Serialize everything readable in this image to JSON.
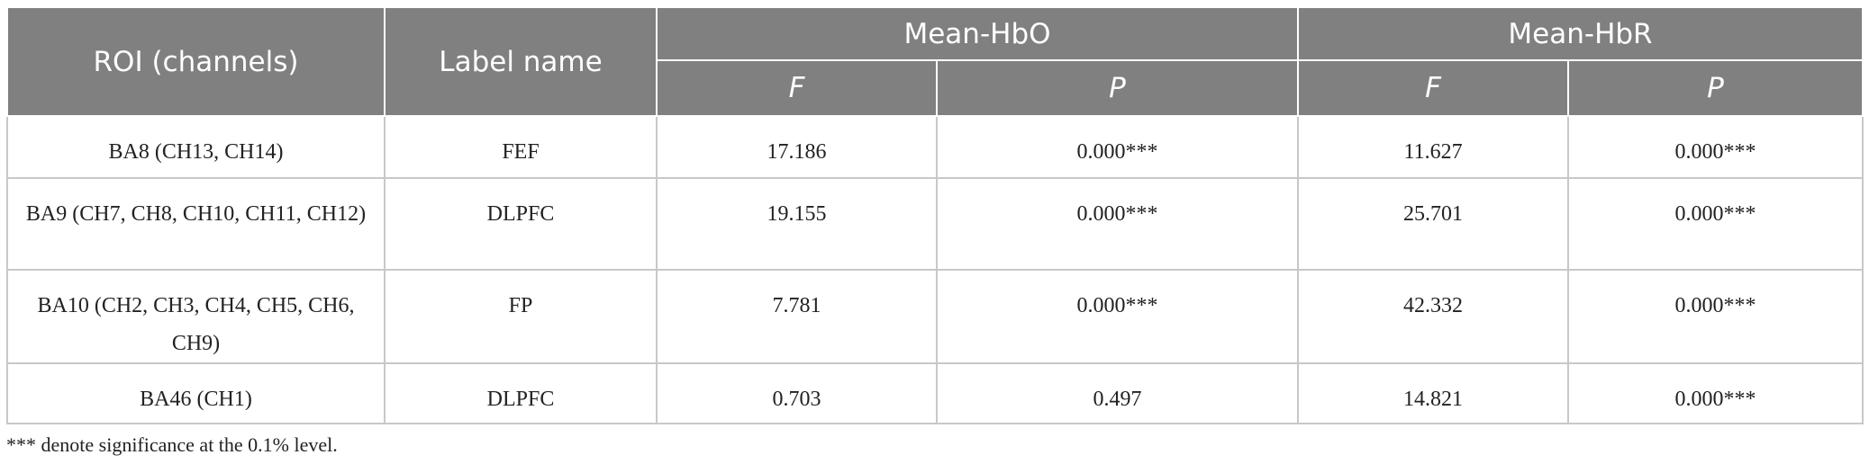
{
  "table": {
    "header": [
      "ROI (channels)",
      "Label name",
      "Mean-HbO",
      "Mean-HbR"
    ],
    "subheader": [
      "F",
      "P",
      "F",
      "P"
    ],
    "rows": [
      [
        "BA8 (CH13, CH14)",
        "FEF",
        "17.186",
        "0.000***",
        "11.627",
        "0.000***"
      ],
      [
        "BA9 (CH7, CH8, CH10, CH11, CH12)",
        "DLPFC",
        "19.155",
        "0.000***",
        "25.701",
        "0.000***"
      ],
      [
        "BA10 (CH2, CH3, CH4, CH5, CH6, CH9)",
        "FP",
        "7.781",
        "0.000***",
        "42.332",
        "0.000***"
      ],
      [
        "BA46 (CH1)",
        "DLPFC",
        "0.703",
        "0.497",
        "14.821",
        "0.000***"
      ]
    ]
  },
  "footnote": "*** denote significance at the 0.1% level."
}
